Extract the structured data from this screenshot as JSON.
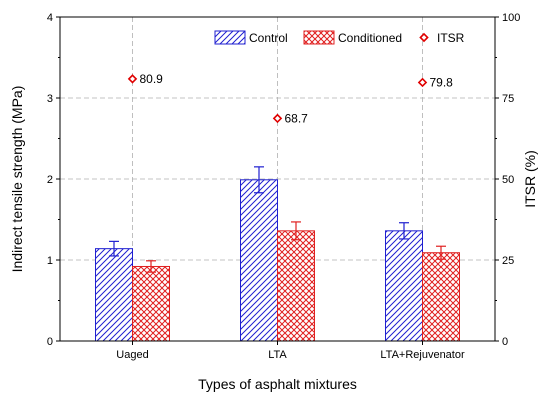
{
  "chart_data": {
    "type": "bar",
    "categories": [
      "Uaged",
      "LTA",
      "LTA+Rejuvenator"
    ],
    "xlabel": "Types of asphalt mixtures",
    "ylabel": "Indirect tensile strength (MPa)",
    "y2label": "ITSR (%)",
    "ylim": [
      0,
      4
    ],
    "y2lim": [
      0,
      100
    ],
    "yticks": [
      "0",
      "1",
      "2",
      "3",
      "4"
    ],
    "y2ticks": [
      "0",
      "25",
      "50",
      "75",
      "100"
    ],
    "grid": true,
    "legend_position": "top-right",
    "series": [
      {
        "name": "Control",
        "values": [
          1.14,
          1.99,
          1.36
        ],
        "errors": [
          0.09,
          0.16,
          0.1
        ],
        "color": "#1f1fd0",
        "pattern": "diagonal-hatch"
      },
      {
        "name": "Conditioned",
        "values": [
          0.92,
          1.36,
          1.09
        ],
        "errors": [
          0.07,
          0.11,
          0.08
        ],
        "color": "#e02020",
        "pattern": "crosshatch"
      }
    ],
    "itsr": {
      "name": "ITSR",
      "values": [
        80.9,
        68.7,
        79.8
      ],
      "labels": [
        "80.9",
        "68.7",
        "79.8"
      ],
      "color": "#e00000",
      "marker": "diamond"
    }
  }
}
